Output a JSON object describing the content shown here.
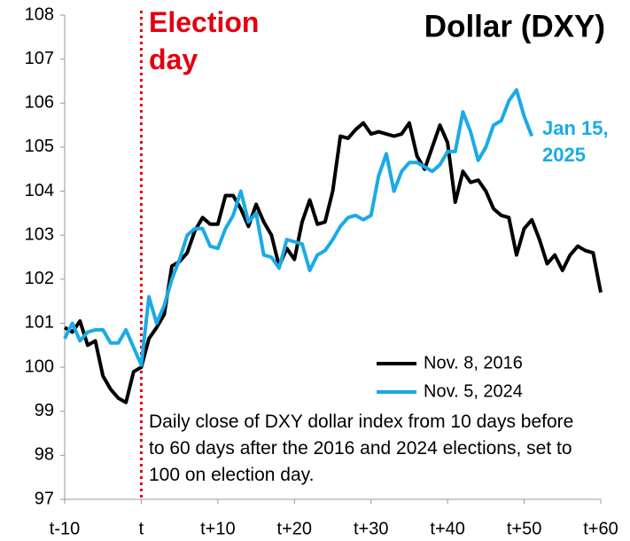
{
  "chart_data": {
    "type": "line",
    "title": "Dollar (DXY)",
    "x": [
      -10,
      -9,
      -8,
      -7,
      -6,
      -5,
      -4,
      -3,
      -2,
      -1,
      0,
      1,
      2,
      3,
      4,
      5,
      6,
      7,
      8,
      9,
      10,
      11,
      12,
      13,
      14,
      15,
      16,
      17,
      18,
      19,
      20,
      21,
      22,
      23,
      24,
      25,
      26,
      27,
      28,
      29,
      30,
      31,
      32,
      33,
      34,
      35,
      36,
      37,
      38,
      39,
      40,
      41,
      42,
      43,
      44,
      45,
      46,
      47,
      48,
      49,
      50,
      51,
      52,
      53,
      54,
      55,
      56,
      57,
      58,
      59,
      60
    ],
    "series": [
      {
        "name": "Nov. 8, 2016",
        "color": "#000000",
        "values": [
          100.9,
          100.8,
          101.05,
          100.5,
          100.6,
          99.8,
          99.5,
          99.3,
          99.2,
          99.9,
          100.0,
          100.65,
          100.9,
          101.2,
          102.3,
          102.4,
          102.6,
          103.1,
          103.4,
          103.25,
          103.25,
          103.9,
          103.9,
          103.6,
          103.2,
          103.7,
          103.3,
          103.0,
          102.3,
          102.7,
          102.45,
          103.3,
          103.8,
          103.25,
          103.3,
          104.0,
          105.25,
          105.2,
          105.4,
          105.55,
          105.3,
          105.35,
          105.3,
          105.25,
          105.3,
          105.55,
          104.8,
          104.5,
          105.0,
          105.5,
          105.1,
          103.75,
          104.45,
          104.2,
          104.25,
          104.0,
          103.6,
          103.45,
          103.4,
          102.55,
          103.15,
          103.35,
          102.9,
          102.35,
          102.55,
          102.2,
          102.55,
          102.75,
          102.65,
          102.6,
          101.7
        ]
      },
      {
        "name": "Nov. 5, 2024",
        "color": "#1aabe6",
        "values": [
          100.65,
          101.0,
          100.6,
          100.8,
          100.85,
          100.85,
          100.55,
          100.55,
          100.85,
          100.45,
          100.05,
          101.6,
          101.0,
          101.4,
          102.0,
          102.45,
          103.0,
          103.15,
          103.15,
          102.75,
          102.7,
          103.15,
          103.45,
          104.0,
          103.3,
          103.5,
          102.55,
          102.5,
          102.25,
          102.9,
          102.85,
          102.8,
          102.2,
          102.55,
          102.65,
          102.9,
          103.2,
          103.4,
          103.45,
          103.35,
          103.45,
          104.35,
          104.85,
          104.0,
          104.45,
          104.65,
          104.65,
          104.55,
          104.45,
          104.6,
          104.9,
          104.9,
          105.8,
          105.35,
          104.7,
          105.0,
          105.5,
          105.6,
          106.05,
          106.3,
          105.7,
          105.25,
          null,
          null,
          null,
          null,
          null,
          null,
          null,
          null,
          null
        ]
      }
    ],
    "xlim": [
      -10,
      60
    ],
    "xticks": [
      {
        "value": -10,
        "label": "t-10"
      },
      {
        "value": 0,
        "label": "t"
      },
      {
        "value": 10,
        "label": "t+10"
      },
      {
        "value": 20,
        "label": "t+20"
      },
      {
        "value": 30,
        "label": "t+30"
      },
      {
        "value": 40,
        "label": "t+40"
      },
      {
        "value": 50,
        "label": "t+50"
      },
      {
        "value": 60,
        "label": "t+60"
      }
    ],
    "ylim": [
      97,
      108
    ],
    "yticks": [
      97,
      98,
      99,
      100,
      101,
      102,
      103,
      104,
      105,
      106,
      107,
      108
    ],
    "grid": false,
    "event": {
      "text": "Election day",
      "x": 0,
      "color": "#e3000f"
    },
    "end_label": "Jan 15, 2025",
    "note": "Daily close of DXY dollar index from 10 days before to 60 days after the 2016 and 2024 elections, set to 100 on election day."
  }
}
